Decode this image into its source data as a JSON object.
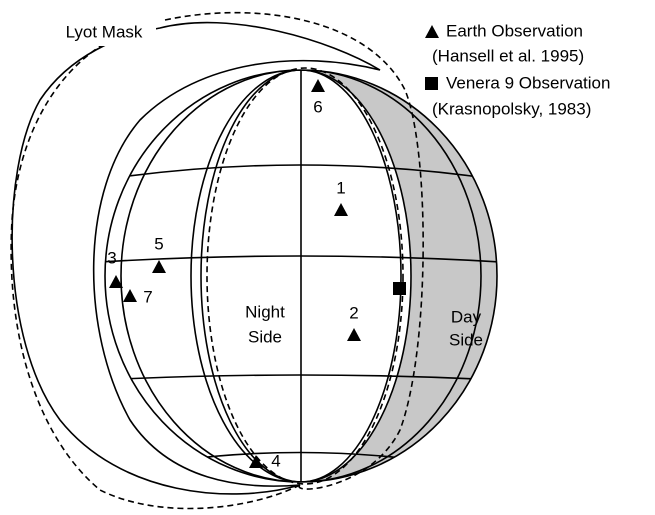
{
  "labels": {
    "lyot_mask": "Lyot Mask",
    "night_side": [
      "Night",
      "Side"
    ],
    "day_side": [
      "Day",
      "Side"
    ]
  },
  "legend": [
    {
      "label": "Earth Observation",
      "detail": "(Hansell et al. 1995)"
    },
    {
      "label": "Venera 9 Observation",
      "detail": "(Krasnopolsky, 1983)"
    }
  ],
  "points": [
    {
      "label": "1"
    },
    {
      "label": "2"
    },
    {
      "label": "3"
    },
    {
      "label": "4"
    },
    {
      "label": "5"
    },
    {
      "label": "6"
    },
    {
      "label": "7"
    }
  ]
}
